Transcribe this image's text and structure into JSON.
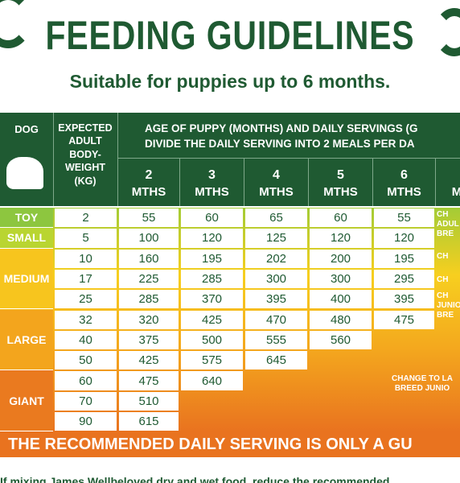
{
  "header": {
    "title": "FEEDING GUIDELINES",
    "subtitle": "Suitable for puppies up to 6 months."
  },
  "table": {
    "head": {
      "dog": "DOG",
      "weight": [
        "EXPECTED",
        "ADULT",
        "BODY-",
        "WEIGHT",
        "(KG)"
      ],
      "age": [
        "AGE OF PUPPY (MONTHS) AND DAILY SERVINGS (G",
        "DIVIDE THE DAILY SERVING INTO 2 MEALS PER DA"
      ],
      "months": [
        {
          "n": "2",
          "unit": "MTHS"
        },
        {
          "n": "3",
          "unit": "MTHS"
        },
        {
          "n": "4",
          "unit": "MTHS"
        },
        {
          "n": "5",
          "unit": "MTHS"
        },
        {
          "n": "6",
          "unit": "MTHS"
        }
      ],
      "cut": "M"
    },
    "groups": [
      {
        "label": "TOY",
        "color": "#8dc63f",
        "rows": [
          {
            "weight": 2,
            "servings": [
              55,
              60,
              65,
              60,
              55
            ]
          }
        ]
      },
      {
        "label": "SMALL",
        "color": "#b9d531",
        "rows": [
          {
            "weight": 5,
            "servings": [
              100,
              120,
              125,
              120,
              120
            ]
          }
        ]
      },
      {
        "label": "MEDIUM",
        "color": "#f7c51e",
        "rows": [
          {
            "weight": 10,
            "servings": [
              160,
              195,
              202,
              200,
              195
            ]
          },
          {
            "weight": 17,
            "servings": [
              225,
              285,
              300,
              300,
              295
            ]
          },
          {
            "weight": 25,
            "servings": [
              285,
              370,
              395,
              400,
              395
            ]
          }
        ]
      },
      {
        "label": "LARGE",
        "color": "#f3a51d",
        "rows": [
          {
            "weight": 32,
            "servings": [
              320,
              425,
              470,
              480,
              475
            ]
          },
          {
            "weight": 40,
            "servings": [
              375,
              500,
              555,
              560
            ]
          },
          {
            "weight": 50,
            "servings": [
              425,
              575,
              645
            ]
          }
        ]
      },
      {
        "label": "GIANT",
        "color": "#ea7a1f",
        "rows": [
          {
            "weight": 60,
            "servings": [
              475,
              640
            ]
          },
          {
            "weight": 70,
            "servings": [
              510
            ]
          },
          {
            "weight": 90,
            "servings": [
              615
            ]
          }
        ]
      }
    ],
    "notes": [
      [
        "CH",
        "ADUL",
        "BRE"
      ],
      [
        "CH"
      ],
      [
        "CH"
      ],
      [
        "CH",
        "JUNIO",
        "BRE"
      ],
      [
        "CHANGE TO LA",
        "BREED JUNIO"
      ]
    ]
  },
  "footer": {
    "banner": "THE RECOMMENDED DAILY SERVING IS ONLY A GU",
    "note": "If mixing James Wellbeloved dry and wet food, reduce the recommended"
  }
}
